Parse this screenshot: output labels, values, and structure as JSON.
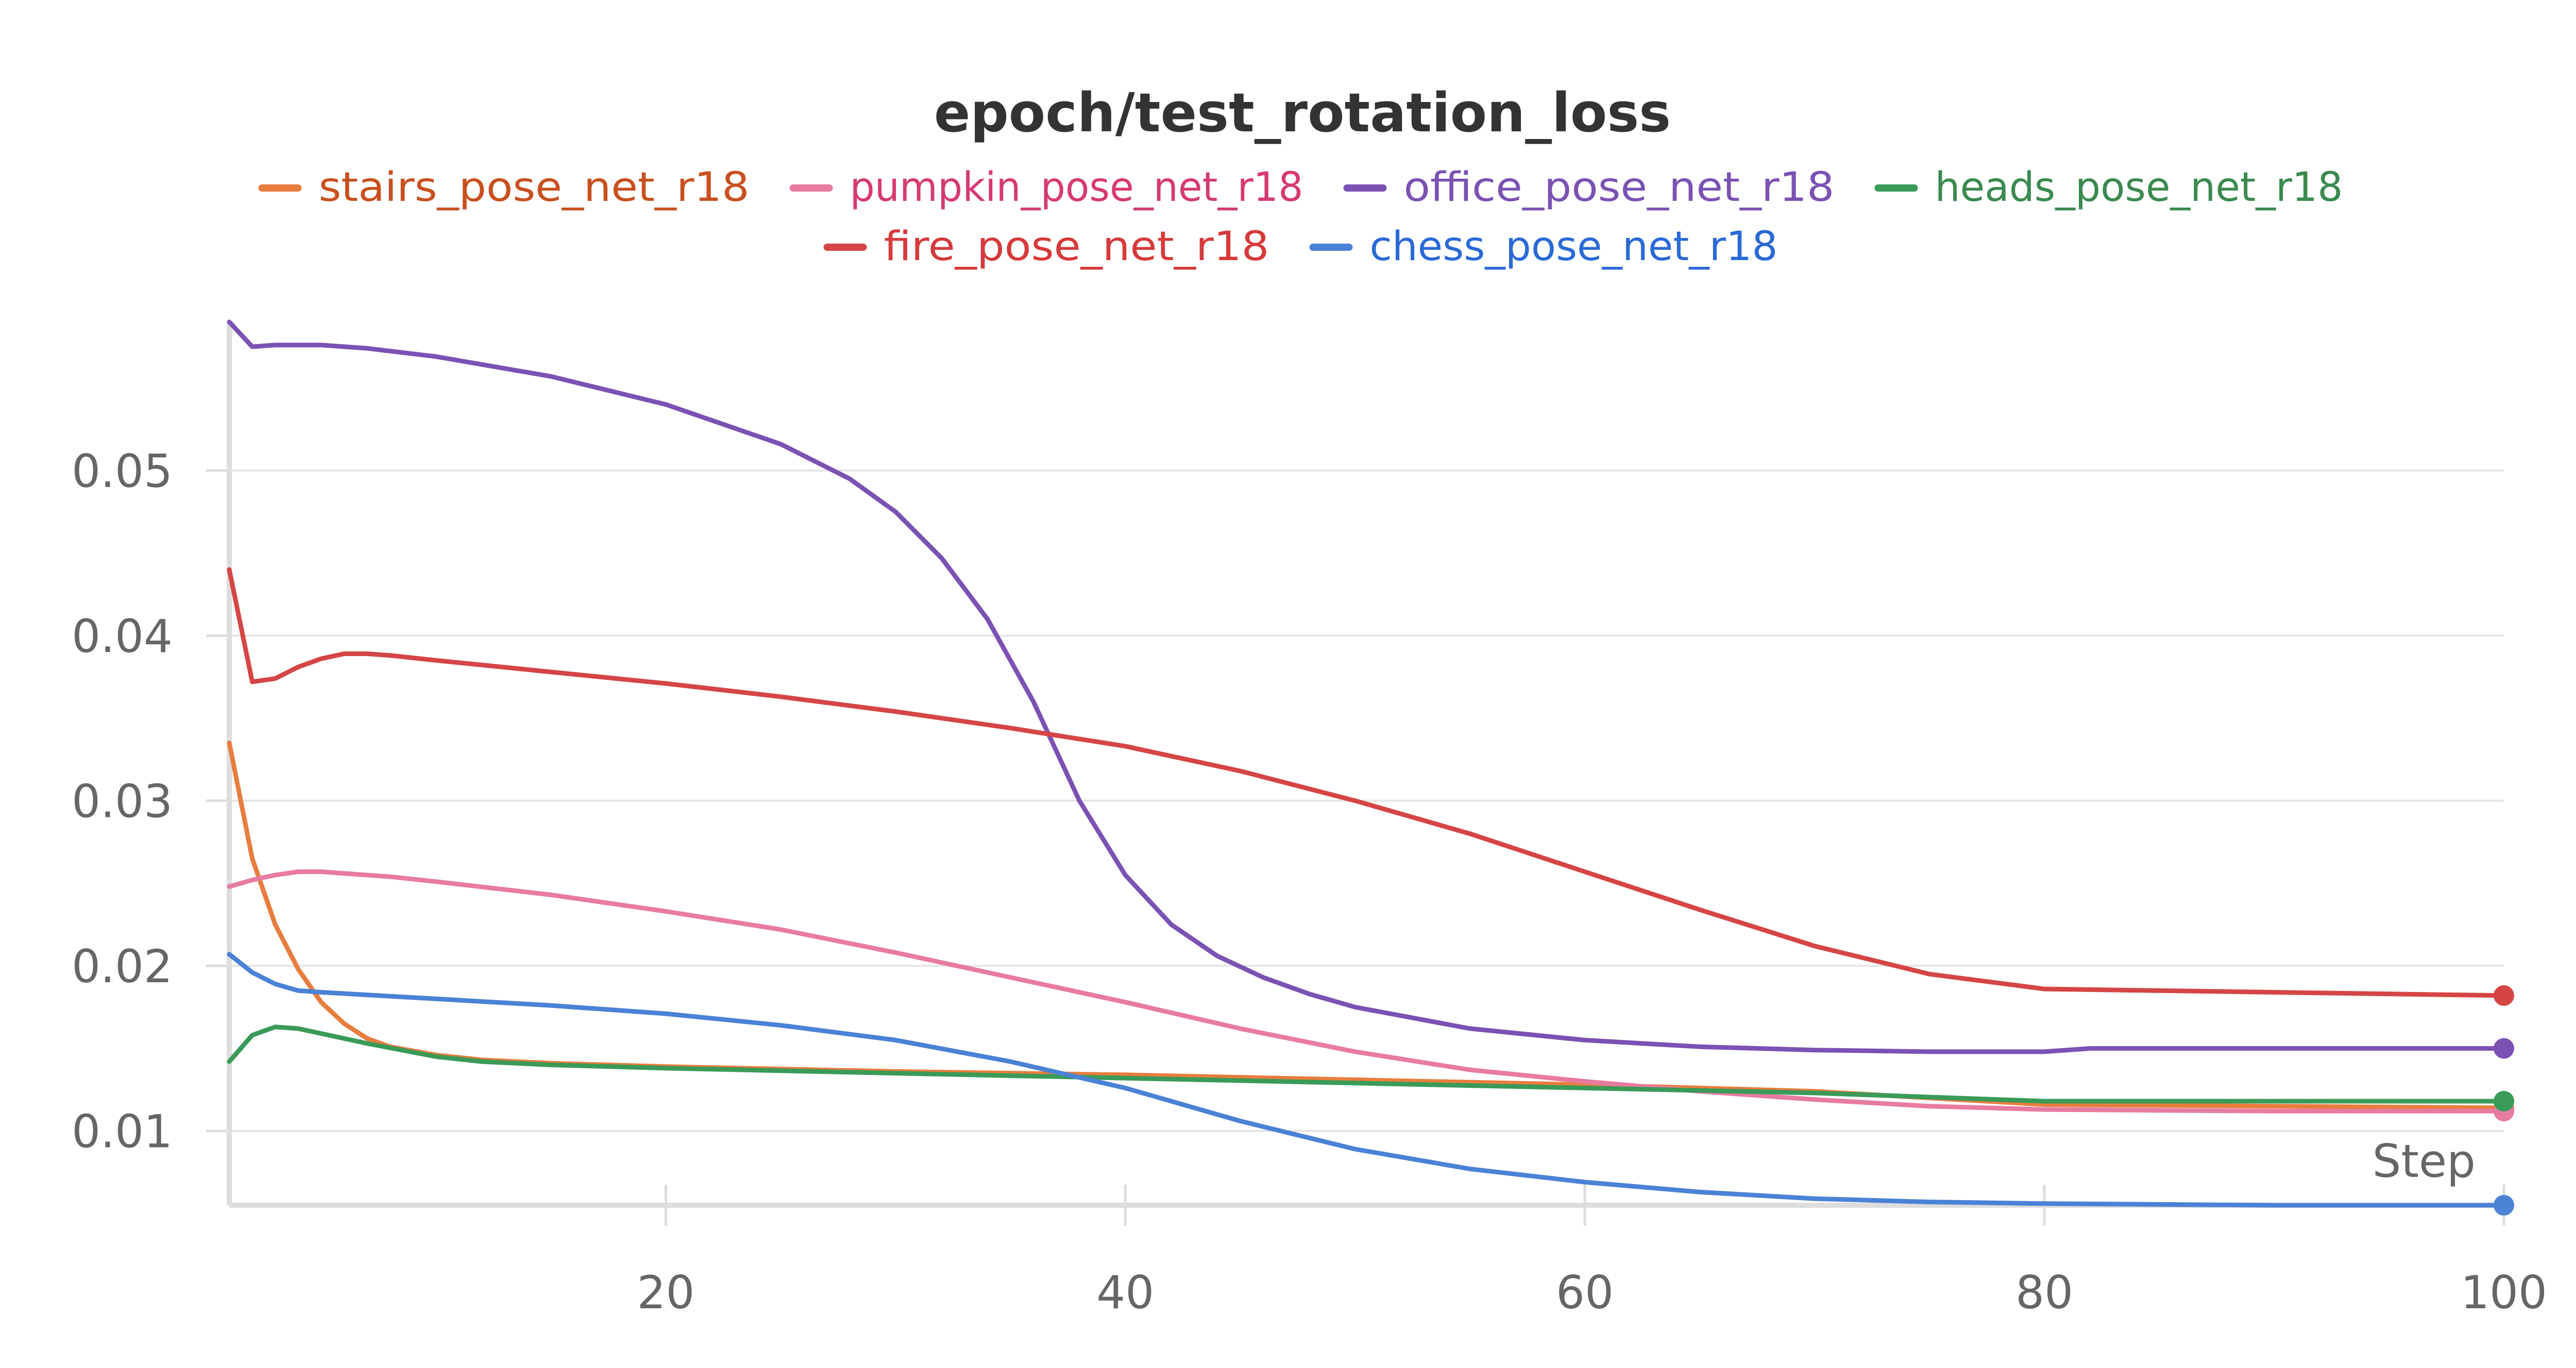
{
  "chart_data": {
    "type": "line",
    "title": "epoch/test_rotation_loss",
    "xlabel": "Step",
    "ylabel": "",
    "xlim": [
      1,
      100
    ],
    "ylim": [
      0.0055,
      0.059
    ],
    "x_ticks": [
      20,
      40,
      60,
      80,
      100
    ],
    "x_tick_labels": [
      "20",
      "40",
      "60",
      "80",
      "100"
    ],
    "y_ticks": [
      0.01,
      0.02,
      0.03,
      0.04,
      0.05
    ],
    "y_tick_labels": [
      "0.01",
      "0.02",
      "0.03",
      "0.04",
      "0.05"
    ],
    "grid": true,
    "legend_position": "top",
    "series": [
      {
        "name": "stairs_pose_net_r18",
        "color": "#e87d3e",
        "legend_color": "#c8501e",
        "points": [
          [
            1,
            0.0335
          ],
          [
            2,
            0.0265
          ],
          [
            3,
            0.0225
          ],
          [
            4,
            0.0198
          ],
          [
            5,
            0.0178
          ],
          [
            6,
            0.0165
          ],
          [
            7,
            0.0156
          ],
          [
            8,
            0.0151
          ],
          [
            10,
            0.0146
          ],
          [
            12,
            0.0143
          ],
          [
            15,
            0.0141
          ],
          [
            20,
            0.0139
          ],
          [
            30,
            0.0136
          ],
          [
            40,
            0.0134
          ],
          [
            50,
            0.0131
          ],
          [
            60,
            0.0128
          ],
          [
            70,
            0.0124
          ],
          [
            80,
            0.0116
          ],
          [
            90,
            0.0115
          ],
          [
            100,
            0.0114
          ]
        ]
      },
      {
        "name": "pumpkin_pose_net_r18",
        "color": "#e87ba0",
        "legend_color": "#d63a72",
        "points": [
          [
            1,
            0.0248
          ],
          [
            2,
            0.0252
          ],
          [
            3,
            0.0255
          ],
          [
            4,
            0.0257
          ],
          [
            5,
            0.0257
          ],
          [
            6,
            0.0256
          ],
          [
            8,
            0.0254
          ],
          [
            10,
            0.0251
          ],
          [
            15,
            0.0243
          ],
          [
            20,
            0.0233
          ],
          [
            25,
            0.0222
          ],
          [
            30,
            0.0208
          ],
          [
            35,
            0.0193
          ],
          [
            40,
            0.0178
          ],
          [
            45,
            0.0162
          ],
          [
            50,
            0.0148
          ],
          [
            55,
            0.0137
          ],
          [
            60,
            0.013
          ],
          [
            65,
            0.0124
          ],
          [
            70,
            0.0119
          ],
          [
            75,
            0.0115
          ],
          [
            80,
            0.0113
          ],
          [
            90,
            0.0112
          ],
          [
            100,
            0.0112
          ]
        ]
      },
      {
        "name": "office_pose_net_r18",
        "color": "#7b52b4",
        "legend_color": "#7b52b4",
        "points": [
          [
            1,
            0.059
          ],
          [
            2,
            0.0575
          ],
          [
            3,
            0.0576
          ],
          [
            4,
            0.0576
          ],
          [
            5,
            0.0576
          ],
          [
            7,
            0.0574
          ],
          [
            10,
            0.0569
          ],
          [
            15,
            0.0557
          ],
          [
            20,
            0.054
          ],
          [
            25,
            0.0516
          ],
          [
            28,
            0.0495
          ],
          [
            30,
            0.0475
          ],
          [
            32,
            0.0447
          ],
          [
            34,
            0.041
          ],
          [
            36,
            0.036
          ],
          [
            38,
            0.03
          ],
          [
            40,
            0.0255
          ],
          [
            42,
            0.0225
          ],
          [
            44,
            0.0206
          ],
          [
            46,
            0.0193
          ],
          [
            48,
            0.0183
          ],
          [
            50,
            0.0175
          ],
          [
            55,
            0.0162
          ],
          [
            60,
            0.0155
          ],
          [
            65,
            0.0151
          ],
          [
            70,
            0.0149
          ],
          [
            75,
            0.0148
          ],
          [
            80,
            0.0148
          ],
          [
            82,
            0.015
          ],
          [
            90,
            0.015
          ],
          [
            100,
            0.015
          ]
        ]
      },
      {
        "name": "heads_pose_net_r18",
        "color": "#3a9a58",
        "legend_color": "#3a8a4f",
        "points": [
          [
            1,
            0.0142
          ],
          [
            2,
            0.0158
          ],
          [
            3,
            0.0163
          ],
          [
            4,
            0.0162
          ],
          [
            5,
            0.0159
          ],
          [
            7,
            0.0153
          ],
          [
            10,
            0.0145
          ],
          [
            12,
            0.0142
          ],
          [
            15,
            0.014
          ],
          [
            20,
            0.0138
          ],
          [
            30,
            0.0135
          ],
          [
            40,
            0.0132
          ],
          [
            50,
            0.0129
          ],
          [
            60,
            0.0126
          ],
          [
            70,
            0.0123
          ],
          [
            80,
            0.0118
          ],
          [
            90,
            0.0118
          ],
          [
            100,
            0.0118
          ]
        ]
      },
      {
        "name": "fire_pose_net_r18",
        "color": "#d64545",
        "legend_color": "#d63a3a",
        "points": [
          [
            1,
            0.044
          ],
          [
            2,
            0.0372
          ],
          [
            3,
            0.0374
          ],
          [
            4,
            0.0381
          ],
          [
            5,
            0.0386
          ],
          [
            6,
            0.0389
          ],
          [
            7,
            0.0389
          ],
          [
            8,
            0.0388
          ],
          [
            10,
            0.0385
          ],
          [
            15,
            0.0378
          ],
          [
            20,
            0.0371
          ],
          [
            25,
            0.0363
          ],
          [
            30,
            0.0354
          ],
          [
            35,
            0.0344
          ],
          [
            40,
            0.0333
          ],
          [
            45,
            0.0318
          ],
          [
            50,
            0.03
          ],
          [
            55,
            0.028
          ],
          [
            60,
            0.0257
          ],
          [
            65,
            0.0234
          ],
          [
            70,
            0.0212
          ],
          [
            75,
            0.0195
          ],
          [
            80,
            0.0186
          ],
          [
            90,
            0.0184
          ],
          [
            100,
            0.0182
          ]
        ]
      },
      {
        "name": "chess_pose_net_r18",
        "color": "#4a82d6",
        "legend_color": "#2a6ad6",
        "points": [
          [
            1,
            0.0207
          ],
          [
            2,
            0.0196
          ],
          [
            3,
            0.0189
          ],
          [
            4,
            0.0185
          ],
          [
            5,
            0.0184
          ],
          [
            10,
            0.018
          ],
          [
            15,
            0.0176
          ],
          [
            20,
            0.0171
          ],
          [
            25,
            0.0164
          ],
          [
            30,
            0.0155
          ],
          [
            35,
            0.0142
          ],
          [
            40,
            0.0126
          ],
          [
            45,
            0.0106
          ],
          [
            50,
            0.0089
          ],
          [
            55,
            0.0077
          ],
          [
            60,
            0.0069
          ],
          [
            65,
            0.0063
          ],
          [
            70,
            0.0059
          ],
          [
            75,
            0.0057
          ],
          [
            80,
            0.0056
          ],
          [
            90,
            0.0055
          ],
          [
            100,
            0.0055
          ]
        ]
      }
    ]
  }
}
